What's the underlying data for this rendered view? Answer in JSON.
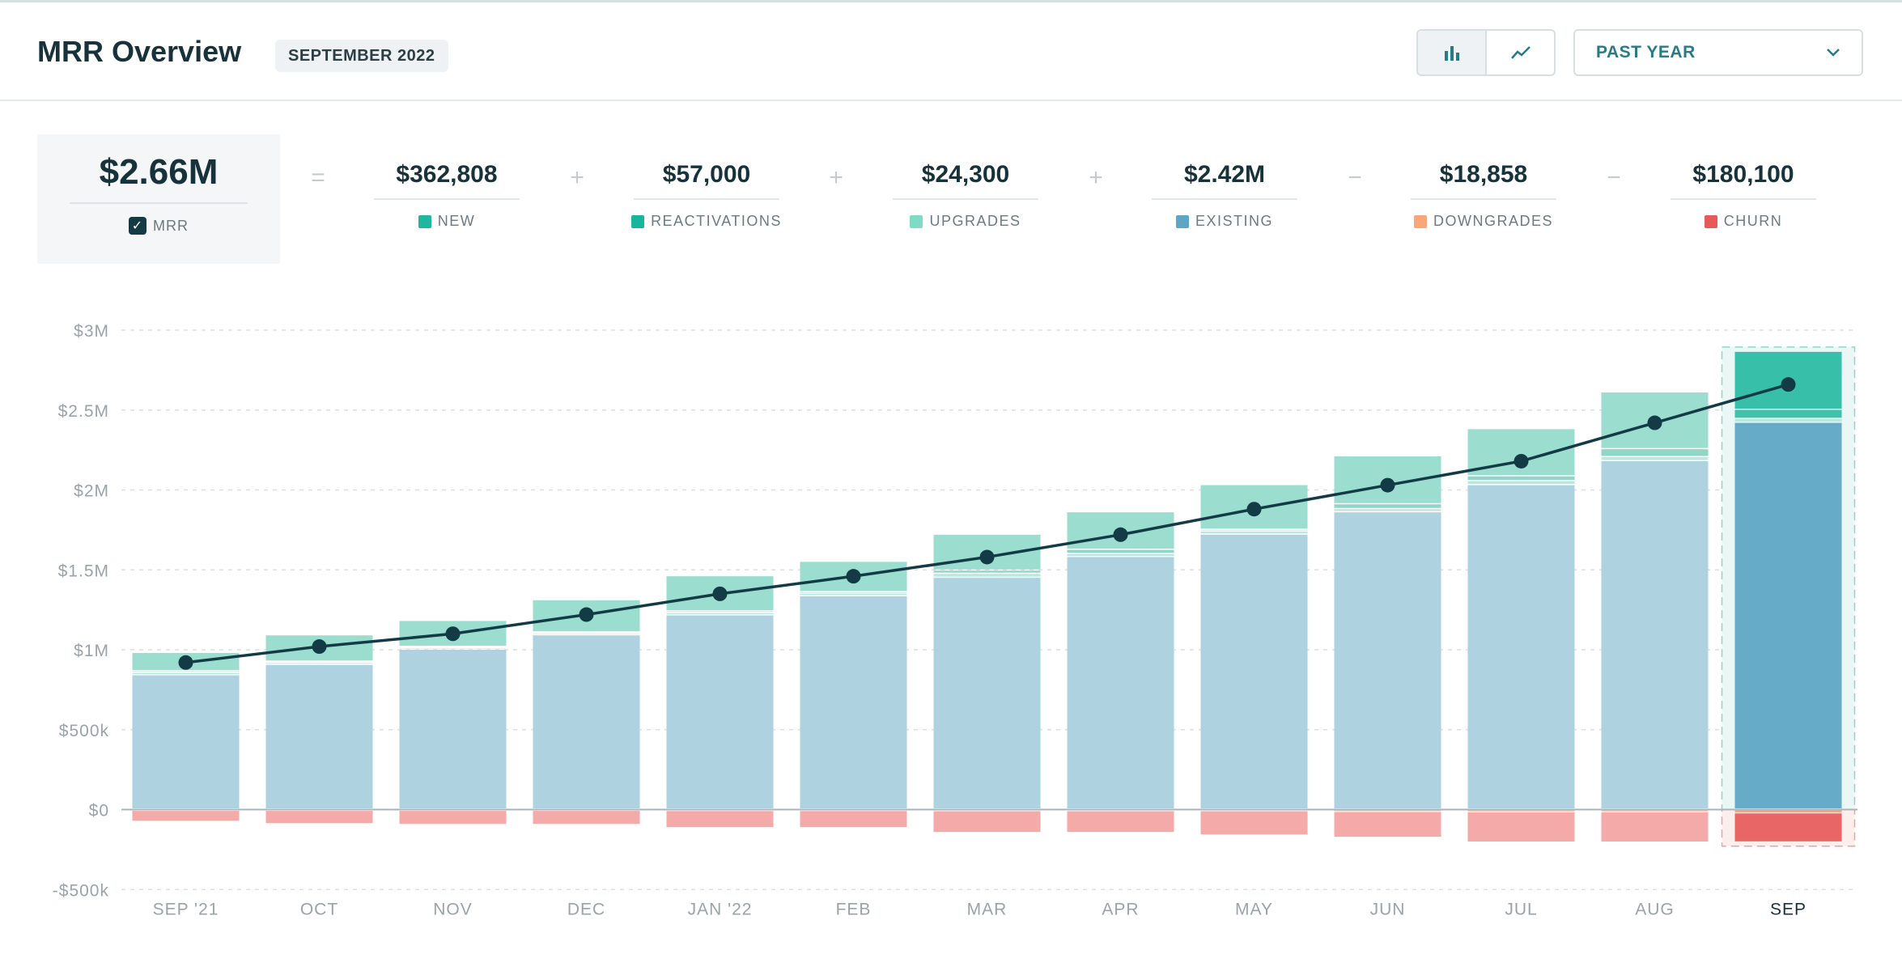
{
  "header": {
    "title": "MRR Overview",
    "period_badge": "SEPTEMBER 2022",
    "range_label": "PAST YEAR",
    "view_icons": [
      "bar-chart-icon",
      "line-chart-icon"
    ],
    "active_view": "bar"
  },
  "summary": {
    "mrr": {
      "value": "$2.66M",
      "label": "MRR",
      "checked": true
    },
    "operators": [
      "=",
      "+",
      "+",
      "+",
      "−",
      "−"
    ],
    "components": [
      {
        "value": "$362,808",
        "label": "NEW",
        "color": "#1fb89e"
      },
      {
        "value": "$57,000",
        "label": "REACTIVATIONS",
        "color": "#17b59c"
      },
      {
        "value": "$24,300",
        "label": "UPGRADES",
        "color": "#7fdcc4"
      },
      {
        "value": "$2.42M",
        "label": "EXISTING",
        "color": "#5ea7c4"
      },
      {
        "value": "$18,858",
        "label": "DOWNGRADES",
        "color": "#f9a77a"
      },
      {
        "value": "$180,100",
        "label": "CHURN",
        "color": "#e85a58"
      }
    ]
  },
  "chart_data": {
    "type": "bar",
    "stacked": true,
    "categories": [
      "SEP '21",
      "OCT",
      "NOV",
      "DEC",
      "JAN '22",
      "FEB",
      "MAR",
      "APR",
      "MAY",
      "JUN",
      "JUL",
      "AUG",
      "SEP"
    ],
    "highlighted": "SEP",
    "ylim": [
      -500000,
      3000000
    ],
    "yticks": [
      "-$500k",
      "$0",
      "$500k",
      "$1M",
      "$1.5M",
      "$2M",
      "$2.5M",
      "$3M"
    ],
    "ytick_values": [
      -500000,
      0,
      500000,
      1000000,
      1500000,
      2000000,
      2500000,
      3000000
    ],
    "grid": true,
    "series": [
      {
        "name": "EXISTING",
        "values": [
          840000,
          905000,
          1000000,
          1090000,
          1215000,
          1335000,
          1450000,
          1580000,
          1720000,
          1860000,
          2030000,
          2180000,
          2420000
        ],
        "color": "#aed2e0",
        "highlight_color": "#66abc8"
      },
      {
        "name": "UPGRADES",
        "values": [
          15000,
          12000,
          10000,
          10000,
          15000,
          15000,
          25000,
          20000,
          20000,
          20000,
          25000,
          25000,
          24300
        ],
        "color": "#b8e9df",
        "highlight_color": "#b8e9df"
      },
      {
        "name": "REACTIVATIONS",
        "values": [
          10000,
          8000,
          8000,
          8000,
          10000,
          10000,
          20000,
          25000,
          10000,
          30000,
          30000,
          50000,
          57000
        ],
        "color": "#8fd6c7",
        "highlight_color": "#3fc1ac"
      },
      {
        "name": "NEW",
        "values": [
          115000,
          165000,
          162000,
          202000,
          220000,
          190000,
          225000,
          235000,
          280000,
          300000,
          295000,
          355000,
          362808
        ],
        "color": "#9bddcf",
        "highlight_color": "#38bfaa"
      },
      {
        "name": "DOWNGRADES",
        "values": [
          -3000,
          -3000,
          -3000,
          -3000,
          -4000,
          -4000,
          -5000,
          -5000,
          -5000,
          -10000,
          -12000,
          -12000,
          -18858
        ],
        "color": "#f8c4a8",
        "highlight_color": "#f9a77a"
      },
      {
        "name": "CHURN",
        "values": [
          -67000,
          -82000,
          -87000,
          -87000,
          -106000,
          -106000,
          -135000,
          -135000,
          -150000,
          -160000,
          -188000,
          -188000,
          -180100
        ],
        "color": "#f4aaa8",
        "highlight_color": "#e86766"
      }
    ],
    "line": {
      "name": "MRR",
      "values": [
        920000,
        1020000,
        1100000,
        1220000,
        1350000,
        1460000,
        1580000,
        1720000,
        1880000,
        2030000,
        2180000,
        2420000,
        2660000
      ],
      "color": "#123b45"
    }
  }
}
